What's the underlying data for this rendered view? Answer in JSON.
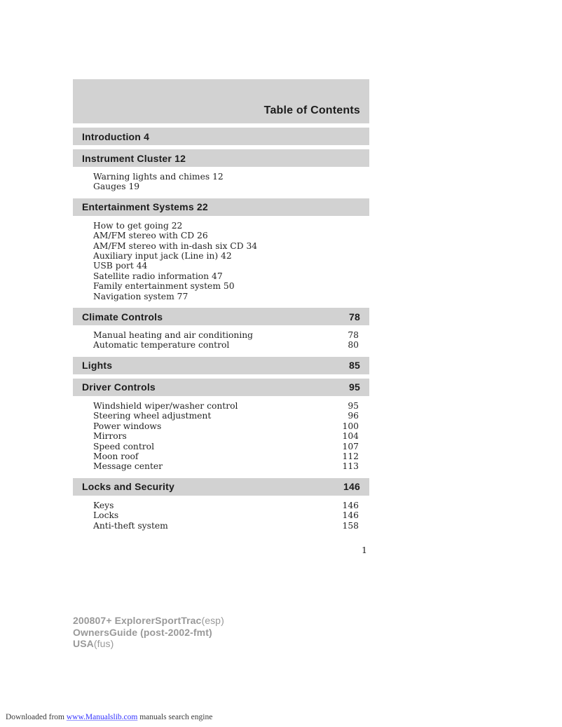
{
  "page": {
    "page_number": "1"
  },
  "colors": {
    "bar_gray": "#d2d2d2",
    "footer_gray": "#999999",
    "link_blue": "#3333ff"
  },
  "toc": {
    "title": "Table of Contents",
    "sections": [
      {
        "title": "Introduction 4",
        "page": null,
        "items": []
      },
      {
        "title": "Instrument Cluster 12",
        "page": null,
        "items": [
          {
            "label": "Warning lights and chimes 12",
            "page": null
          },
          {
            "label": "Gauges 19",
            "page": null
          }
        ]
      },
      {
        "title": "Entertainment Systems 22",
        "page": null,
        "items": [
          {
            "label": "How to get going 22",
            "page": null
          },
          {
            "label": "AM/FM stereo with CD 26",
            "page": null
          },
          {
            "label": "AM/FM stereo with in-dash six CD 34",
            "page": null
          },
          {
            "label": "Auxiliary input jack (Line in) 42",
            "page": null
          },
          {
            "label": "USB port 44",
            "page": null
          },
          {
            "label": "Satellite radio information 47",
            "page": null
          },
          {
            "label": "Family entertainment system 50",
            "page": null
          },
          {
            "label": "Navigation system 77",
            "page": null
          }
        ]
      },
      {
        "title": "Climate Controls",
        "page": "78",
        "items": [
          {
            "label": "Manual heating and air conditioning",
            "page": "78"
          },
          {
            "label": "Automatic temperature control",
            "page": "80"
          }
        ]
      },
      {
        "title": "Lights",
        "page": "85",
        "items": []
      },
      {
        "title": "Driver Controls",
        "page": "95",
        "items": [
          {
            "label": "Windshield wiper/washer control",
            "page": "95"
          },
          {
            "label": "Steering wheel adjustment",
            "page": "96"
          },
          {
            "label": "Power windows",
            "page": "100"
          },
          {
            "label": "Mirrors",
            "page": "104"
          },
          {
            "label": "Speed control",
            "page": "107"
          },
          {
            "label": "Moon roof",
            "page": "112"
          },
          {
            "label": "Message center",
            "page": "113"
          }
        ]
      },
      {
        "title": "Locks and Security",
        "page": "146",
        "items": [
          {
            "label": "Keys",
            "page": "146"
          },
          {
            "label": "Locks",
            "page": "146"
          },
          {
            "label": "Anti-theft system",
            "page": "158"
          }
        ]
      }
    ]
  },
  "footer": {
    "line1_bold": "200807+ ExplorerSportTrac",
    "line1_normal": "(esp)",
    "line2_bold": "OwnersGuide (post-2002-fmt)",
    "line2_normal": "",
    "line3_bold": "USA",
    "line3_normal": "(fus)"
  },
  "watermark": {
    "prefix": "Downloaded from ",
    "link": "www.Manualslib.com",
    "suffix": " manuals search engine"
  }
}
